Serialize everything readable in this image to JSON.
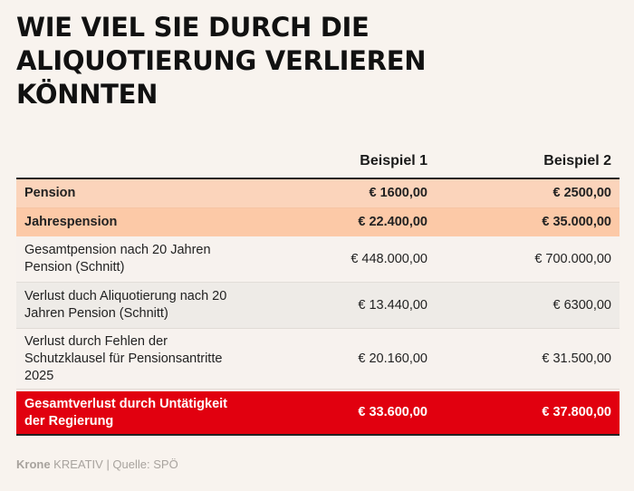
{
  "title": "WIE VIEL SIE DURCH DIE ALIQUOTIERUNG VERLIEREN KÖNNTEN",
  "table": {
    "headers": [
      "",
      "Beispiel 1",
      "Beispiel 2"
    ],
    "rows": [
      {
        "label": "Pension",
        "b1": "€ 1600,00",
        "b2": "€ 2500,00"
      },
      {
        "label": "Jahrespension",
        "b1": "€ 22.400,00",
        "b2": "€ 35.000,00"
      },
      {
        "label": "Gesamtpension nach 20 Jahren Pension (Schnitt)",
        "b1": "€ 448.000,00",
        "b2": "€ 700.000,00"
      },
      {
        "label": "Verlust duch Aliquotierung nach 20 Jahren Pension (Schnitt)",
        "b1": "€ 13.440,00",
        "b2": "€ 6300,00"
      },
      {
        "label": "Verlust durch Fehlen der Schutzklausel für Pensionsantritte 2025",
        "b1": "€ 20.160,00",
        "b2": "€ 31.500,00"
      },
      {
        "label": "Gesamtverlust durch Untätigkeit der Regierung",
        "b1": "€ 33.600,00",
        "b2": "€ 37.800,00"
      }
    ]
  },
  "footer": {
    "brand": "Krone",
    "rest": " KREATIV | Quelle: SPÖ"
  },
  "colors": {
    "background": "#f8f3ee",
    "highlight_light": "#fbd4bb",
    "highlight_dark": "#fcc9a7",
    "total_red": "#e1000f"
  }
}
